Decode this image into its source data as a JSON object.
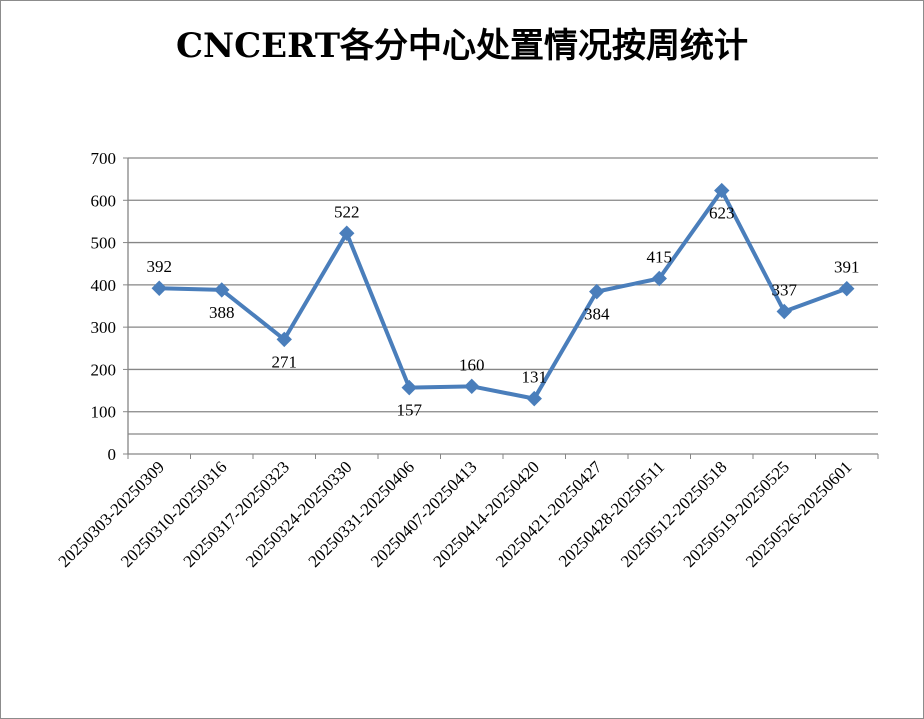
{
  "chart_data": {
    "type": "line",
    "title": "CNCERT各分中心处置情况按周统计",
    "xlabel": "",
    "ylabel": "",
    "ylim": [
      0,
      700
    ],
    "yticks": [
      0,
      100,
      200,
      300,
      400,
      500,
      600,
      700
    ],
    "grid": true,
    "legend": "none",
    "categories": [
      "20250303-20250309",
      "20250310-20250316",
      "20250317-20250323",
      "20250324-20250330",
      "20250331-20250406",
      "20250407-20250413",
      "20250414-20250420",
      "20250421-20250427",
      "20250428-20250511",
      "20250512-20250518",
      "20250519-20250525",
      "20250526-20250601"
    ],
    "series": [
      {
        "values": [
          392,
          388,
          271,
          522,
          157,
          160,
          131,
          384,
          415,
          623,
          337,
          391
        ],
        "color": "#4a7ebb",
        "marker": "diamond"
      }
    ],
    "label_positions": [
      "above",
      "below",
      "below",
      "above",
      "below",
      "above",
      "above",
      "below",
      "above",
      "below",
      "above",
      "above"
    ]
  }
}
